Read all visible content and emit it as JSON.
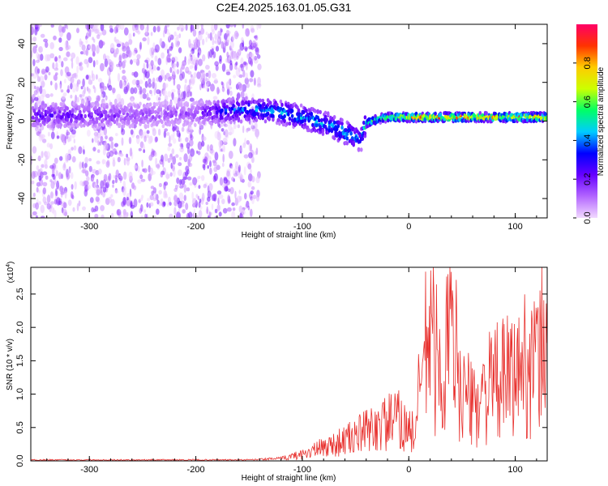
{
  "title": "C2E4.2025.163.01.05.G31",
  "chart_data": [
    {
      "type": "heatmap",
      "xlabel": "Height of straight line (km)",
      "ylabel": "Frequency (Hz)",
      "xlim": [
        -355,
        130
      ],
      "ylim": [
        -50,
        50
      ],
      "xticks": [
        -300,
        -200,
        -100,
        0,
        100
      ],
      "yticks": [
        -40,
        -20,
        0,
        20,
        40
      ],
      "colorbar": {
        "label": "Normalized spectral amplitude",
        "range": [
          0.0,
          1.0
        ],
        "ticks": [
          "0.0",
          "0.2",
          "0.4",
          "0.6",
          "0.8"
        ],
        "colormap": [
          "#f2d9ff",
          "#b366ff",
          "#6600ff",
          "#0000ff",
          "#00ccff",
          "#00ff66",
          "#ccff00",
          "#ffcc00",
          "#ff3300",
          "#ff0066"
        ]
      },
      "ridge": {
        "x": [
          -345,
          -300,
          -250,
          -200,
          -175,
          -150,
          -125,
          -100,
          -75,
          -55,
          -45,
          -40,
          -30,
          -20,
          0,
          25,
          50,
          75,
          100,
          125
        ],
        "y": [
          3,
          3,
          3,
          4,
          5,
          6,
          5,
          2,
          -2,
          -7,
          -10,
          -1,
          1,
          2,
          2,
          2,
          2,
          2,
          2,
          2
        ],
        "amplitude": [
          0.25,
          0.22,
          0.15,
          0.15,
          0.35,
          0.4,
          0.45,
          0.45,
          0.45,
          0.5,
          0.4,
          0.55,
          0.6,
          0.65,
          0.8,
          0.85,
          0.85,
          0.8,
          0.85,
          0.9
        ]
      },
      "noise_region": {
        "x": [
          -355,
          -140
        ],
        "y": [
          -50,
          50
        ]
      }
    },
    {
      "type": "line",
      "xlabel": "Height of straight line (km)",
      "ylabel": "SNR (10 * v/v)",
      "yscale_note": "(x10",
      "yscale_exp": "4",
      "xlim": [
        -355,
        130
      ],
      "ylim": [
        0,
        2.9
      ],
      "xticks": [
        -300,
        -200,
        -100,
        0,
        100
      ],
      "yticks": [
        0.0,
        0.5,
        1.0,
        1.5,
        2.0,
        2.5
      ],
      "color": "#e8312e",
      "series": [
        {
          "x": [
            -355,
            -300,
            -250,
            -200,
            -150,
            -120,
            -100,
            -80,
            -60,
            -40,
            -20,
            -10,
            0,
            5,
            10,
            15,
            20,
            30,
            40,
            50,
            60,
            70,
            80,
            90,
            100,
            110,
            120,
            128
          ],
          "y": [
            0.02,
            0.02,
            0.02,
            0.02,
            0.02,
            0.05,
            0.15,
            0.3,
            0.45,
            0.65,
            0.85,
            0.9,
            0.7,
            0.6,
            1.5,
            2.4,
            2.9,
            1.8,
            2.9,
            1.6,
            1.2,
            1.5,
            1.7,
            1.8,
            1.9,
            2.2,
            2.1,
            2.8
          ]
        }
      ]
    }
  ]
}
